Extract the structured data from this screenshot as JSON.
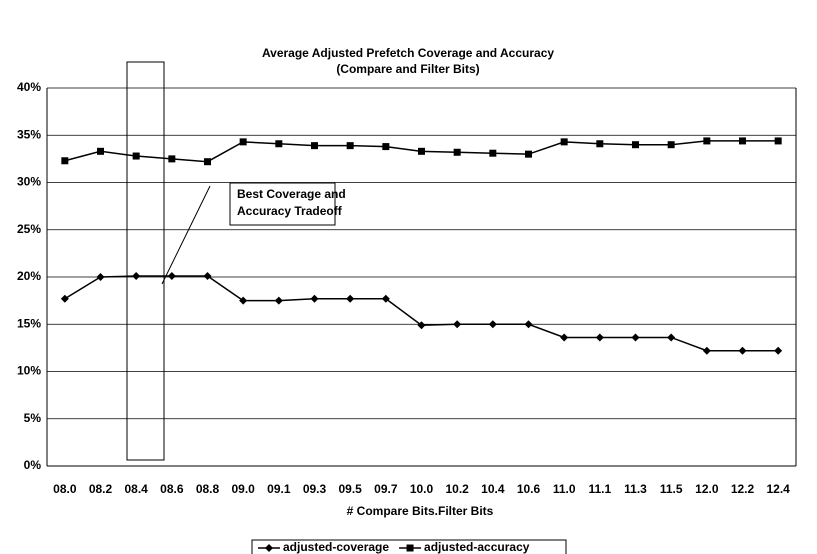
{
  "chart_data": {
    "type": "line",
    "title": "Average Adjusted Prefetch Coverage and Accuracy",
    "subtitle": "(Compare and Filter Bits)",
    "x_label": "# Compare Bits.Filter Bits",
    "categories": [
      "08.0",
      "08.2",
      "08.4",
      "08.6",
      "08.8",
      "09.0",
      "09.1",
      "09.3",
      "09.5",
      "09.7",
      "10.0",
      "10.2",
      "10.4",
      "10.6",
      "11.0",
      "11.1",
      "11.3",
      "11.5",
      "12.0",
      "12.2",
      "12.4"
    ],
    "series": [
      {
        "name": "adjusted-coverage",
        "color": "#000000",
        "marker": "diamond",
        "values": [
          17.7,
          20.0,
          20.1,
          20.1,
          20.1,
          17.5,
          17.5,
          17.7,
          17.7,
          17.7,
          14.9,
          15.0,
          15.0,
          15.0,
          13.6,
          13.6,
          13.6,
          13.6,
          12.2,
          12.2,
          12.2
        ]
      },
      {
        "name": "adjusted-accuracy",
        "color": "#000000",
        "marker": "square",
        "values": [
          32.3,
          33.3,
          32.8,
          32.5,
          32.2,
          34.3,
          34.1,
          33.9,
          33.9,
          33.8,
          33.3,
          33.2,
          33.1,
          33.0,
          34.3,
          34.1,
          34.0,
          34.0,
          34.4,
          34.4,
          34.4
        ]
      }
    ],
    "ylim": [
      0,
      40
    ],
    "yticks": [
      {
        "value": 0,
        "label": "0%"
      },
      {
        "value": 5,
        "label": "5%"
      },
      {
        "value": 10,
        "label": "10%"
      },
      {
        "value": 15,
        "label": "15%"
      },
      {
        "value": 20,
        "label": "20%"
      },
      {
        "value": 25,
        "label": "25%"
      },
      {
        "value": 30,
        "label": "30%"
      },
      {
        "value": 35,
        "label": "35%"
      },
      {
        "value": 40,
        "label": "40%"
      }
    ],
    "grid": true,
    "legend": "bottom",
    "annotation": [
      "Best Coverage and",
      "Accuracy Tradeoff"
    ]
  }
}
